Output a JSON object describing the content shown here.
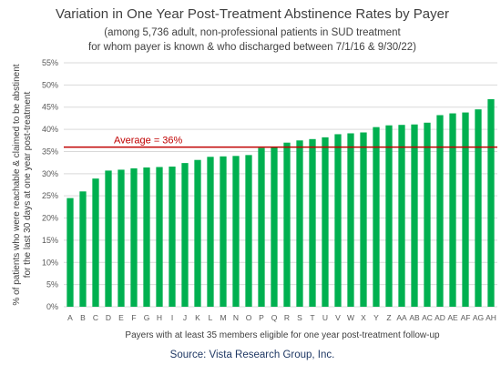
{
  "chart_data": {
    "type": "bar",
    "title": "Variation in One Year Post-Treatment Abstinence Rates by Payer",
    "subtitle_lines": [
      "(among 5,736 adult, non-professional patients in SUD treatment",
      "for whom payer is known & who discharged between 7/1/16 & 9/30/22)"
    ],
    "ylabel_lines": [
      "% of patients who were reachable & claimed to be abstinent",
      "for the last 30 days at one year post-treatment"
    ],
    "xlabel": "Payers with at least 35 members eligible for one year post-treatment follow-up",
    "source": "Source: Vista Research Group, Inc.",
    "categories": [
      "A",
      "B",
      "C",
      "D",
      "E",
      "F",
      "G",
      "H",
      "I",
      "J",
      "K",
      "L",
      "M",
      "N",
      "O",
      "P",
      "Q",
      "R",
      "S",
      "T",
      "U",
      "V",
      "W",
      "X",
      "Y",
      "Z",
      "AA",
      "AB",
      "AC",
      "AD",
      "AE",
      "AF",
      "AG",
      "AH"
    ],
    "values": [
      0.245,
      0.26,
      0.289,
      0.307,
      0.309,
      0.312,
      0.314,
      0.315,
      0.316,
      0.324,
      0.331,
      0.338,
      0.339,
      0.34,
      0.342,
      0.358,
      0.36,
      0.37,
      0.375,
      0.378,
      0.382,
      0.389,
      0.391,
      0.393,
      0.405,
      0.409,
      0.41,
      0.411,
      0.415,
      0.432,
      0.436,
      0.438,
      0.445,
      0.468
    ],
    "y_ticks": [
      "0%",
      "5%",
      "10%",
      "15%",
      "20%",
      "25%",
      "30%",
      "35%",
      "40%",
      "45%",
      "50%",
      "55%"
    ],
    "ylim": [
      0,
      0.55
    ],
    "grid": true,
    "average": {
      "value": 0.36,
      "label": "Average = 36%"
    },
    "colors": {
      "bar": "#00b050",
      "average": "#c00000",
      "grid": "#d9d9d9",
      "source": "#1f3864"
    }
  }
}
